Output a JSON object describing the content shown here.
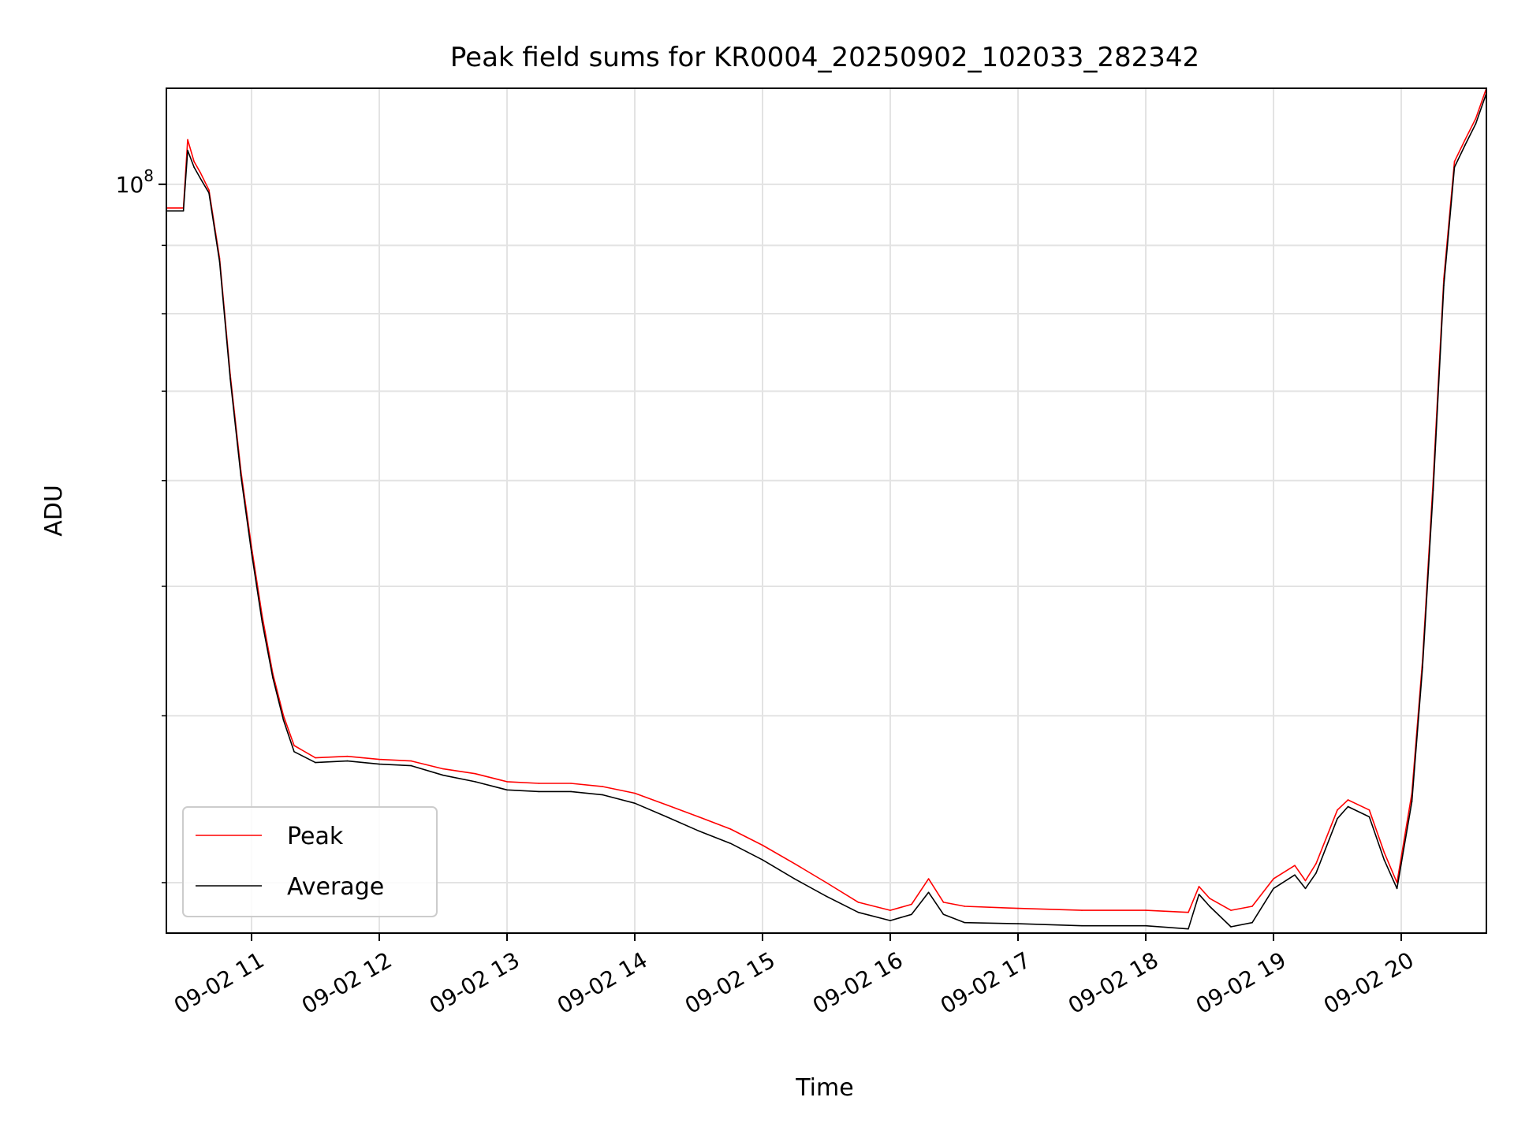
{
  "chart_data": {
    "type": "line",
    "title": "Peak field sums for KR0004_20250902_102033_282342",
    "xlabel": "Time",
    "ylabel": "ADU",
    "x_type": "datetime",
    "x_range": [
      "2025-09-02T10:20",
      "2025-09-02T20:40"
    ],
    "y_scale": "log",
    "y_range": [
      27500000,
      118000000
    ],
    "grid": true,
    "legend_location": "lower-left",
    "x_ticks": [
      {
        "value": "2025-09-02T11:00",
        "label": "09-02 11"
      },
      {
        "value": "2025-09-02T12:00",
        "label": "09-02 12"
      },
      {
        "value": "2025-09-02T13:00",
        "label": "09-02 13"
      },
      {
        "value": "2025-09-02T14:00",
        "label": "09-02 14"
      },
      {
        "value": "2025-09-02T15:00",
        "label": "09-02 15"
      },
      {
        "value": "2025-09-02T16:00",
        "label": "09-02 16"
      },
      {
        "value": "2025-09-02T17:00",
        "label": "09-02 17"
      },
      {
        "value": "2025-09-02T18:00",
        "label": "09-02 18"
      },
      {
        "value": "2025-09-02T19:00",
        "label": "09-02 19"
      },
      {
        "value": "2025-09-02T20:00",
        "label": "09-02 20"
      }
    ],
    "y_major_ticks": [
      {
        "value": 100000000,
        "base": "10",
        "exponent": "8"
      }
    ],
    "y_minor_ticks": [
      30000000,
      40000000,
      50000000,
      60000000,
      70000000,
      80000000,
      90000000
    ],
    "series": [
      {
        "name": "Peak",
        "color": "#ff0000",
        "points": [
          [
            "2025-09-02T10:20",
            96000000
          ],
          [
            "2025-09-02T10:28",
            96000000
          ],
          [
            "2025-09-02T10:30",
            108000000
          ],
          [
            "2025-09-02T10:33",
            104000000
          ],
          [
            "2025-09-02T10:36",
            102000000
          ],
          [
            "2025-09-02T10:40",
            99000000
          ],
          [
            "2025-09-02T10:45",
            88000000
          ],
          [
            "2025-09-02T10:50",
            72000000
          ],
          [
            "2025-09-02T10:55",
            61000000
          ],
          [
            "2025-09-02T11:00",
            53500000
          ],
          [
            "2025-09-02T11:05",
            47500000
          ],
          [
            "2025-09-02T11:10",
            43000000
          ],
          [
            "2025-09-02T11:15",
            40000000
          ],
          [
            "2025-09-02T11:20",
            38000000
          ],
          [
            "2025-09-02T11:30",
            37200000
          ],
          [
            "2025-09-02T11:45",
            37300000
          ],
          [
            "2025-09-02T12:00",
            37100000
          ],
          [
            "2025-09-02T12:15",
            37000000
          ],
          [
            "2025-09-02T12:30",
            36500000
          ],
          [
            "2025-09-02T12:45",
            36200000
          ],
          [
            "2025-09-02T13:00",
            35700000
          ],
          [
            "2025-09-02T13:15",
            35600000
          ],
          [
            "2025-09-02T13:30",
            35600000
          ],
          [
            "2025-09-02T13:45",
            35400000
          ],
          [
            "2025-09-02T14:00",
            35000000
          ],
          [
            "2025-09-02T14:15",
            34300000
          ],
          [
            "2025-09-02T14:30",
            33600000
          ],
          [
            "2025-09-02T14:45",
            32900000
          ],
          [
            "2025-09-02T15:00",
            32000000
          ],
          [
            "2025-09-02T15:15",
            31000000
          ],
          [
            "2025-09-02T15:30",
            30000000
          ],
          [
            "2025-09-02T15:45",
            29000000
          ],
          [
            "2025-09-02T16:00",
            28600000
          ],
          [
            "2025-09-02T16:10",
            28900000
          ],
          [
            "2025-09-02T16:18",
            30200000
          ],
          [
            "2025-09-02T16:25",
            29000000
          ],
          [
            "2025-09-02T16:35",
            28800000
          ],
          [
            "2025-09-02T17:00",
            28700000
          ],
          [
            "2025-09-02T17:30",
            28600000
          ],
          [
            "2025-09-02T18:00",
            28600000
          ],
          [
            "2025-09-02T18:20",
            28500000
          ],
          [
            "2025-09-02T18:25",
            29800000
          ],
          [
            "2025-09-02T18:30",
            29200000
          ],
          [
            "2025-09-02T18:40",
            28600000
          ],
          [
            "2025-09-02T18:50",
            28800000
          ],
          [
            "2025-09-02T19:00",
            30200000
          ],
          [
            "2025-09-02T19:10",
            30900000
          ],
          [
            "2025-09-02T19:15",
            30100000
          ],
          [
            "2025-09-02T19:20",
            31000000
          ],
          [
            "2025-09-02T19:30",
            34000000
          ],
          [
            "2025-09-02T19:35",
            34600000
          ],
          [
            "2025-09-02T19:45",
            34000000
          ],
          [
            "2025-09-02T19:52",
            31600000
          ],
          [
            "2025-09-02T19:58",
            30000000
          ],
          [
            "2025-09-02T20:05",
            35000000
          ],
          [
            "2025-09-02T20:10",
            44000000
          ],
          [
            "2025-09-02T20:15",
            60000000
          ],
          [
            "2025-09-02T20:20",
            85000000
          ],
          [
            "2025-09-02T20:25",
            104000000
          ],
          [
            "2025-09-02T20:30",
            108000000
          ],
          [
            "2025-09-02T20:35",
            112000000
          ],
          [
            "2025-09-02T20:40",
            118000000
          ]
        ]
      },
      {
        "name": "Average",
        "color": "#000000",
        "points": [
          [
            "2025-09-02T10:20",
            95500000
          ],
          [
            "2025-09-02T10:28",
            95500000
          ],
          [
            "2025-09-02T10:30",
            106000000
          ],
          [
            "2025-09-02T10:33",
            103000000
          ],
          [
            "2025-09-02T10:36",
            101000000
          ],
          [
            "2025-09-02T10:40",
            98500000
          ],
          [
            "2025-09-02T10:45",
            87500000
          ],
          [
            "2025-09-02T10:50",
            71500000
          ],
          [
            "2025-09-02T10:55",
            60500000
          ],
          [
            "2025-09-02T11:00",
            53000000
          ],
          [
            "2025-09-02T11:05",
            47000000
          ],
          [
            "2025-09-02T11:10",
            42700000
          ],
          [
            "2025-09-02T11:15",
            39700000
          ],
          [
            "2025-09-02T11:20",
            37600000
          ],
          [
            "2025-09-02T11:30",
            36900000
          ],
          [
            "2025-09-02T11:45",
            37000000
          ],
          [
            "2025-09-02T12:00",
            36800000
          ],
          [
            "2025-09-02T12:15",
            36700000
          ],
          [
            "2025-09-02T12:30",
            36100000
          ],
          [
            "2025-09-02T12:45",
            35700000
          ],
          [
            "2025-09-02T13:00",
            35200000
          ],
          [
            "2025-09-02T13:15",
            35100000
          ],
          [
            "2025-09-02T13:30",
            35100000
          ],
          [
            "2025-09-02T13:45",
            34900000
          ],
          [
            "2025-09-02T14:00",
            34400000
          ],
          [
            "2025-09-02T14:15",
            33600000
          ],
          [
            "2025-09-02T14:30",
            32800000
          ],
          [
            "2025-09-02T14:45",
            32100000
          ],
          [
            "2025-09-02T15:00",
            31200000
          ],
          [
            "2025-09-02T15:15",
            30200000
          ],
          [
            "2025-09-02T15:30",
            29300000
          ],
          [
            "2025-09-02T15:45",
            28500000
          ],
          [
            "2025-09-02T16:00",
            28100000
          ],
          [
            "2025-09-02T16:10",
            28400000
          ],
          [
            "2025-09-02T16:18",
            29500000
          ],
          [
            "2025-09-02T16:25",
            28400000
          ],
          [
            "2025-09-02T16:35",
            28000000
          ],
          [
            "2025-09-02T17:00",
            27950000
          ],
          [
            "2025-09-02T17:30",
            27850000
          ],
          [
            "2025-09-02T18:00",
            27850000
          ],
          [
            "2025-09-02T18:20",
            27700000
          ],
          [
            "2025-09-02T18:25",
            29400000
          ],
          [
            "2025-09-02T18:30",
            28800000
          ],
          [
            "2025-09-02T18:40",
            27800000
          ],
          [
            "2025-09-02T18:50",
            28000000
          ],
          [
            "2025-09-02T19:00",
            29700000
          ],
          [
            "2025-09-02T19:10",
            30400000
          ],
          [
            "2025-09-02T19:15",
            29700000
          ],
          [
            "2025-09-02T19:20",
            30500000
          ],
          [
            "2025-09-02T19:30",
            33500000
          ],
          [
            "2025-09-02T19:35",
            34200000
          ],
          [
            "2025-09-02T19:45",
            33600000
          ],
          [
            "2025-09-02T19:52",
            31200000
          ],
          [
            "2025-09-02T19:58",
            29700000
          ],
          [
            "2025-09-02T20:05",
            34500000
          ],
          [
            "2025-09-02T20:10",
            43500000
          ],
          [
            "2025-09-02T20:15",
            59000000
          ],
          [
            "2025-09-02T20:20",
            84000000
          ],
          [
            "2025-09-02T20:25",
            103000000
          ],
          [
            "2025-09-02T20:30",
            107000000
          ],
          [
            "2025-09-02T20:35",
            111000000
          ],
          [
            "2025-09-02T20:40",
            117000000
          ]
        ]
      }
    ]
  }
}
